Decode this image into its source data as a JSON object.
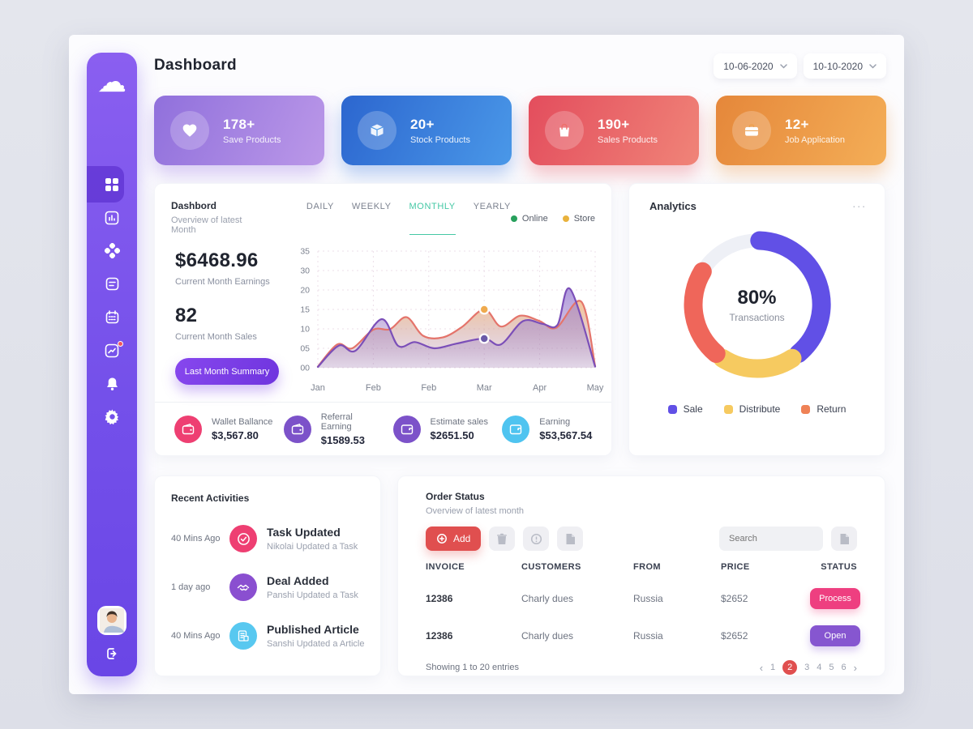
{
  "header": {
    "title": "Dashboard",
    "date_from": "10-06-2020",
    "date_to": "10-10-2020"
  },
  "sidebar": {
    "logo_icon": "cloud-logo",
    "items": [
      "dashboard-grid",
      "bar-chart",
      "categories",
      "notes",
      "calendar",
      "activity",
      "notifications",
      "settings"
    ],
    "active_item": "dashboard-grid",
    "bottom": [
      "avatar",
      "logout"
    ]
  },
  "stat_cards": [
    {
      "value": "178+",
      "label": "Save Products",
      "icon": "heart-icon",
      "gradient": [
        "#9070dc",
        "#bb98e8"
      ]
    },
    {
      "value": "20+",
      "label": "Stock Products",
      "icon": "box-icon",
      "gradient": [
        "#2c66cf",
        "#4a98e8"
      ]
    },
    {
      "value": "190+",
      "label": "Sales Products",
      "icon": "bag-icon",
      "gradient": [
        "#e34d5d",
        "#f08478"
      ]
    },
    {
      "value": "12+",
      "label": "Job Application",
      "icon": "briefcase-icon",
      "gradient": [
        "#e5873a",
        "#f4ae57"
      ]
    }
  ],
  "chart_panel": {
    "title": "Dashbord",
    "subtitle": "Overview of latest Month",
    "tabs": [
      "DAILY",
      "WEEKLY",
      "MONTHLY",
      "YEARLY"
    ],
    "active_tab": "MONTHLY",
    "legend": [
      {
        "label": "Online",
        "color": "#27a05c"
      },
      {
        "label": "Store",
        "color": "#e9b23d"
      }
    ],
    "earnings_value": "$6468.96",
    "earnings_label": "Current Month Earnings",
    "sales_value": "82",
    "sales_label": "Current Month Sales",
    "button_label": "Last Month Summary",
    "footer_stats": [
      {
        "label": "Wallet Ballance",
        "value": "$3,567.80",
        "color": "#ee3f72"
      },
      {
        "label": "Referral Earning",
        "value": "$1589.53",
        "color": "#7c52c9"
      },
      {
        "label": "Estimate sales",
        "value": "$2651.50",
        "color": "#7c52c9"
      },
      {
        "label": "Earning",
        "value": "$53,567.54",
        "color": "#4fc4f0"
      }
    ]
  },
  "chart_data": {
    "type": "area",
    "title": "Dashbord - Overview of latest Month",
    "x_ticks": [
      "Jan",
      "Feb",
      "Feb",
      "Mar",
      "Apr",
      "May"
    ],
    "y_ticks": [
      "35",
      "30",
      "20",
      "15",
      "10",
      "05",
      "00"
    ],
    "y_tick_values_bottom_up": [
      0,
      5,
      10,
      15,
      20,
      30,
      35
    ],
    "grid": true,
    "series": [
      {
        "name": "Store",
        "color": "#e4746b",
        "fill_top": "#f5bd85",
        "fill_bottom": "#a886b8",
        "points": [
          [
            0,
            0.3
          ],
          [
            0.35,
            6
          ],
          [
            0.62,
            5
          ],
          [
            1,
            9.8
          ],
          [
            1.3,
            9.9
          ],
          [
            1.6,
            13
          ],
          [
            1.9,
            8.2
          ],
          [
            2.25,
            7.8
          ],
          [
            2.6,
            10.5
          ],
          [
            3,
            15
          ],
          [
            3.3,
            10.6
          ],
          [
            3.65,
            13.4
          ],
          [
            4,
            12
          ],
          [
            4.3,
            10.3
          ],
          [
            4.75,
            17
          ],
          [
            5,
            0.4
          ]
        ]
      },
      {
        "name": "Online",
        "color": "#7b4fb8",
        "fill_top": "#a188d8",
        "fill_bottom": "#a886b8",
        "points": [
          [
            0,
            0.2
          ],
          [
            0.38,
            5.7
          ],
          [
            0.68,
            4.4
          ],
          [
            1.15,
            12.5
          ],
          [
            1.45,
            5.6
          ],
          [
            1.75,
            6.6
          ],
          [
            2.1,
            5
          ],
          [
            2.5,
            6.2
          ],
          [
            3,
            7.5
          ],
          [
            3.3,
            6
          ],
          [
            3.7,
            12
          ],
          [
            4.05,
            11.3
          ],
          [
            4.32,
            11
          ],
          [
            4.55,
            20.5
          ],
          [
            5,
            0.3
          ]
        ]
      }
    ],
    "highlight_dots": [
      {
        "x": 3,
        "y": 15,
        "color": "#efaa4e"
      },
      {
        "x": 3,
        "y": 7.5,
        "color": "#6a5aa8"
      }
    ]
  },
  "analytics": {
    "title": "Analytics",
    "menu_icon": "ellipsis-icon",
    "menu_glyph": "...",
    "donut": {
      "center_value": "80%",
      "center_label": "Transactions",
      "track_color": "#eef0f6",
      "segments": [
        {
          "label": "Sale",
          "color": "#6150e6",
          "from": 2,
          "to": 140
        },
        {
          "label": "Distribute",
          "color": "#f6ca60",
          "from": 147,
          "to": 213
        },
        {
          "label": "Return",
          "color": "#ef665a",
          "from": 220,
          "to": 301
        }
      ]
    },
    "legend": [
      {
        "label": "Sale",
        "color": "#6150e6"
      },
      {
        "label": "Distribute",
        "color": "#f6ca60"
      },
      {
        "label": "Return",
        "color": "#ef8256"
      }
    ]
  },
  "recent_activities": {
    "title": "Recent Activities",
    "items": [
      {
        "time": "40 Mins Ago",
        "title": "Task Updated",
        "desc": "Nikolai Updated a Task",
        "icon": "check-circle-icon",
        "color": "#ee3f72"
      },
      {
        "time": "1 day ago",
        "title": "Deal Added",
        "desc": "Panshi Updated a Task",
        "icon": "handshake-icon",
        "color": "#8a4fd0"
      },
      {
        "time": "40 Mins Ago",
        "title": "Published Article",
        "desc": "Sanshi Updated a Article",
        "icon": "article-icon",
        "color": "#58c8f0"
      }
    ]
  },
  "order_status": {
    "title": "Order Status",
    "subtitle": "Overview of latest month",
    "add_label": "Add",
    "toolbar_icons": [
      "trash-icon",
      "info-icon",
      "file-icon"
    ],
    "search_placeholder": "Search",
    "side_icon": "file-icon",
    "table": {
      "headers": [
        "INVOICE",
        "CUSTOMERS",
        "FROM",
        "PRICE",
        "STATUS"
      ],
      "rows": [
        {
          "invoice": "12386",
          "customer": "Charly dues",
          "from": "Russia",
          "price": "$2652",
          "status": "Process",
          "status_color": "#ee3f80"
        },
        {
          "invoice": "12386",
          "customer": "Charly dues",
          "from": "Russia",
          "price": "$2652",
          "status": "Open",
          "status_color": "#8656d0"
        }
      ]
    },
    "footer_text": "Showing 1 to 20 entries",
    "pagination": {
      "prev": "‹",
      "pages": [
        "1",
        "2",
        "3",
        "4",
        "5",
        "6"
      ],
      "active": "2",
      "next": "›"
    }
  },
  "colors": {
    "background": "#dfe1e9",
    "canvas": "#fcfcfe",
    "sidebar_top": "#8a5ff0",
    "sidebar_bottom": "#6a46e6",
    "accent_purple": "#7b3fe4",
    "accent_teal": "#45c8a5",
    "accent_red": "#e04f4f"
  }
}
